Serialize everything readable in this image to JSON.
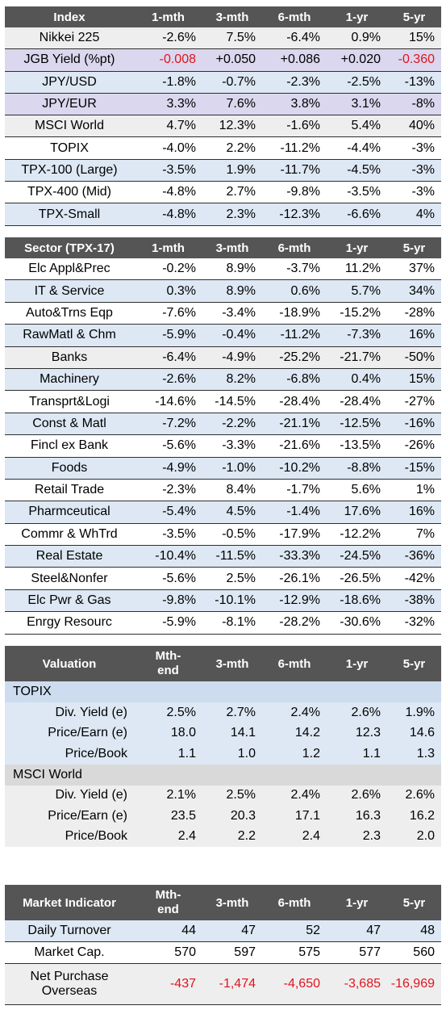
{
  "index_table": {
    "headers": [
      "Index",
      "1-mth",
      "3-mth",
      "6-mth",
      "1-yr",
      "5-yr"
    ],
    "rows": [
      {
        "name": "Nikkei 225",
        "v": [
          "-2.6%",
          "7.5%",
          "-6.4%",
          "0.9%",
          "15%"
        ],
        "bg": "gray",
        "neg": [
          false,
          false,
          false,
          false,
          false
        ]
      },
      {
        "name": "JGB Yield (%pt)",
        "v": [
          "-0.008",
          "+0.050",
          "+0.086",
          "+0.020",
          "-0.360"
        ],
        "bg": "purple",
        "neg": [
          true,
          false,
          false,
          false,
          true
        ]
      },
      {
        "name": "JPY/USD",
        "v": [
          "-1.8%",
          "-0.7%",
          "-2.3%",
          "-2.5%",
          "-13%"
        ],
        "bg": "blue",
        "neg": [
          false,
          false,
          false,
          false,
          false
        ]
      },
      {
        "name": "JPY/EUR",
        "v": [
          "3.3%",
          "7.6%",
          "3.8%",
          "3.1%",
          "-8%"
        ],
        "bg": "purple",
        "neg": [
          false,
          false,
          false,
          false,
          false
        ]
      },
      {
        "name": "MSCI World",
        "v": [
          "4.7%",
          "12.3%",
          "-1.6%",
          "5.4%",
          "40%"
        ],
        "bg": "gray",
        "neg": [
          false,
          false,
          false,
          false,
          false
        ]
      },
      {
        "name": "TOPIX",
        "v": [
          "-4.0%",
          "2.2%",
          "-11.2%",
          "-4.4%",
          "-3%"
        ],
        "bg": "white",
        "neg": [
          false,
          false,
          false,
          false,
          false
        ]
      },
      {
        "name": "TPX-100 (Large)",
        "v": [
          "-3.5%",
          "1.9%",
          "-11.7%",
          "-4.5%",
          "-3%"
        ],
        "bg": "blue",
        "neg": [
          false,
          false,
          false,
          false,
          false
        ]
      },
      {
        "name": "TPX-400 (Mid)",
        "v": [
          "-4.8%",
          "2.7%",
          "-9.8%",
          "-3.5%",
          "-3%"
        ],
        "bg": "white",
        "neg": [
          false,
          false,
          false,
          false,
          false
        ]
      },
      {
        "name": "TPX-Small",
        "v": [
          "-4.8%",
          "2.3%",
          "-12.3%",
          "-6.6%",
          "4%"
        ],
        "bg": "blue",
        "neg": [
          false,
          false,
          false,
          false,
          false
        ]
      }
    ]
  },
  "sector_table": {
    "headers": [
      "Sector (TPX-17)",
      "1-mth",
      "3-mth",
      "6-mth",
      "1-yr",
      "5-yr"
    ],
    "rows": [
      {
        "name": "Elc Appl&Prec",
        "v": [
          "-0.2%",
          "8.9%",
          "-3.7%",
          "11.2%",
          "37%"
        ],
        "bg": "white"
      },
      {
        "name": "IT & Service",
        "v": [
          "0.3%",
          "8.9%",
          "0.6%",
          "5.7%",
          "34%"
        ],
        "bg": "blue"
      },
      {
        "name": "Auto&Trns Eqp",
        "v": [
          "-7.6%",
          "-3.4%",
          "-18.9%",
          "-15.2%",
          "-28%"
        ],
        "bg": "white"
      },
      {
        "name": "RawMatl & Chm",
        "v": [
          "-5.9%",
          "-0.4%",
          "-11.2%",
          "-7.3%",
          "16%"
        ],
        "bg": "blue"
      },
      {
        "name": "Banks",
        "v": [
          "-6.4%",
          "-4.9%",
          "-25.2%",
          "-21.7%",
          "-50%"
        ],
        "bg": "gray"
      },
      {
        "name": "Machinery",
        "v": [
          "-2.6%",
          "8.2%",
          "-6.8%",
          "0.4%",
          "15%"
        ],
        "bg": "blue"
      },
      {
        "name": "Transprt&Logi",
        "v": [
          "-14.6%",
          "-14.5%",
          "-28.4%",
          "-28.4%",
          "-27%"
        ],
        "bg": "white"
      },
      {
        "name": "Const & Matl",
        "v": [
          "-7.2%",
          "-2.2%",
          "-21.1%",
          "-12.5%",
          "-16%"
        ],
        "bg": "blue"
      },
      {
        "name": "Fincl ex Bank",
        "v": [
          "-5.6%",
          "-3.3%",
          "-21.6%",
          "-13.5%",
          "-26%"
        ],
        "bg": "white"
      },
      {
        "name": "Foods",
        "v": [
          "-4.9%",
          "-1.0%",
          "-10.2%",
          "-8.8%",
          "-15%"
        ],
        "bg": "blue"
      },
      {
        "name": "Retail Trade",
        "v": [
          "-2.3%",
          "8.4%",
          "-1.7%",
          "5.6%",
          "1%"
        ],
        "bg": "white"
      },
      {
        "name": "Pharmceutical",
        "v": [
          "-5.4%",
          "4.5%",
          "-1.4%",
          "17.6%",
          "16%"
        ],
        "bg": "blue"
      },
      {
        "name": "Commr & WhTrd",
        "v": [
          "-3.5%",
          "-0.5%",
          "-17.9%",
          "-12.2%",
          "7%"
        ],
        "bg": "white"
      },
      {
        "name": "Real Estate",
        "v": [
          "-10.4%",
          "-11.5%",
          "-33.3%",
          "-24.5%",
          "-36%"
        ],
        "bg": "blue"
      },
      {
        "name": "Steel&Nonfer",
        "v": [
          "-5.6%",
          "2.5%",
          "-26.1%",
          "-26.5%",
          "-42%"
        ],
        "bg": "white"
      },
      {
        "name": "Elc Pwr & Gas",
        "v": [
          "-9.8%",
          "-10.1%",
          "-12.9%",
          "-18.6%",
          "-38%"
        ],
        "bg": "blue"
      },
      {
        "name": "Enrgy Resourc",
        "v": [
          "-5.9%",
          "-8.1%",
          "-28.2%",
          "-30.6%",
          "-32%"
        ],
        "bg": "white"
      }
    ]
  },
  "valuation_table": {
    "headers": [
      "Valuation",
      "Mth-\nend",
      "3-mth",
      "6-mth",
      "1-yr",
      "5-yr"
    ],
    "header_mth_line1": "Mth-",
    "header_mth_line2": "end",
    "groups": [
      {
        "title": "TOPIX",
        "rows": [
          {
            "name": "Div. Yield (e)",
            "v": [
              "2.5%",
              "2.7%",
              "2.4%",
              "2.6%",
              "1.9%"
            ]
          },
          {
            "name": "Price/Earn (e)",
            "v": [
              "18.0",
              "14.1",
              "14.2",
              "12.3",
              "14.6"
            ]
          },
          {
            "name": "Price/Book",
            "v": [
              "1.1",
              "1.0",
              "1.2",
              "1.1",
              "1.3"
            ]
          }
        ]
      },
      {
        "title": "MSCI World",
        "rows": [
          {
            "name": "Div. Yield (e)",
            "v": [
              "2.1%",
              "2.5%",
              "2.4%",
              "2.6%",
              "2.6%"
            ]
          },
          {
            "name": "Price/Earn (e)",
            "v": [
              "23.5",
              "20.3",
              "17.1",
              "16.3",
              "16.2"
            ]
          },
          {
            "name": "Price/Book",
            "v": [
              "2.4",
              "2.2",
              "2.4",
              "2.3",
              "2.0"
            ]
          }
        ]
      }
    ]
  },
  "market_table": {
    "headers": [
      "Market Indicator",
      "Mth-\nend",
      "3-mth",
      "6-mth",
      "1-yr",
      "5-yr"
    ],
    "header_mth_line1": "Mth-",
    "header_mth_line2": "end",
    "rows": [
      {
        "name": "Daily Turnover",
        "v": [
          "44",
          "47",
          "52",
          "47",
          "48"
        ],
        "bg": "blue",
        "neg": false
      },
      {
        "name": "Market Cap.",
        "v": [
          "570",
          "597",
          "575",
          "577",
          "560"
        ],
        "bg": "white",
        "neg": false
      },
      {
        "name_line1": "Net Purchase",
        "name_line2": "Overseas",
        "v": [
          "-437",
          "-1,474",
          "-4,650",
          "-3,685",
          "-16,969"
        ],
        "bg": "gray",
        "neg": true
      }
    ]
  },
  "colors": {
    "header_bg": "#555555",
    "row_blue": "#dde8f4",
    "row_purple": "#dad7ee",
    "row_gray": "#eeeeee",
    "group_blue": "#cddcef",
    "group_gray": "#d9d9d9",
    "negative_red": "#e0141e"
  }
}
